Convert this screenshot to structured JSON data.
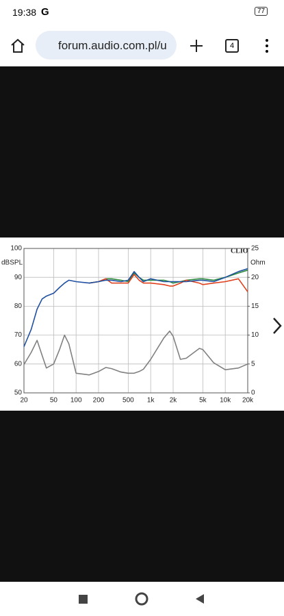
{
  "status_bar": {
    "time": "19:38",
    "g": "G",
    "battery": "77"
  },
  "browser": {
    "url": "forum.audio.com.pl/u",
    "tabs": "4"
  },
  "chart_data": {
    "type": "line",
    "brand": "CLIO",
    "y_label": "dBSPL",
    "y2_label": "Ohm",
    "x": [
      20,
      25,
      30,
      35,
      40,
      50,
      60,
      70,
      80,
      100,
      150,
      200,
      250,
      300,
      400,
      500,
      600,
      700,
      800,
      1000,
      1500,
      1800,
      2000,
      2500,
      3000,
      4500,
      5000,
      7000,
      10000,
      15000,
      20000
    ],
    "xlim": [
      20,
      20000
    ],
    "log_x": true,
    "xticks": [
      20,
      50,
      100,
      200,
      500,
      {
        "value": 1000,
        "label": "1k"
      },
      {
        "value": 2000,
        "label": "2k"
      },
      {
        "value": 5000,
        "label": "5k"
      },
      {
        "value": 10000,
        "label": "10k"
      },
      {
        "value": 20000,
        "label": "20k"
      }
    ],
    "ylim": [
      50,
      100
    ],
    "yticks": [
      50,
      60,
      70,
      80,
      90,
      100
    ],
    "y2lim": [
      0,
      25
    ],
    "y2ticks": [
      0,
      5,
      10,
      15,
      20,
      25
    ],
    "grid": true,
    "series": [
      {
        "color": "#2e8b3c",
        "values": [
          null,
          null,
          null,
          null,
          null,
          null,
          null,
          null,
          null,
          null,
          88,
          88.5,
          89.5,
          89.5,
          89,
          88.5,
          91.5,
          90,
          89,
          89,
          89,
          88.5,
          88,
          88.5,
          89,
          89.5,
          89.5,
          89,
          90,
          91.5,
          92.5
        ]
      },
      {
        "color": "#e0401c",
        "values": [
          null,
          null,
          null,
          null,
          null,
          null,
          null,
          null,
          null,
          null,
          88,
          88.5,
          89.5,
          88,
          88,
          88,
          91,
          89,
          88,
          88,
          87.5,
          87,
          87,
          88,
          89,
          88,
          87.5,
          88,
          88.5,
          89.5,
          85
        ]
      },
      {
        "color": "#1f4fa0",
        "values": [
          66,
          72,
          79,
          82.5,
          83.5,
          84.5,
          86.5,
          88,
          89,
          88.5,
          88,
          88.5,
          89,
          89,
          88.5,
          89,
          92,
          90,
          88.5,
          89.5,
          88.5,
          88.5,
          88.5,
          88.5,
          88.5,
          89,
          89,
          88.5,
          90,
          92,
          93
        ]
      },
      {
        "color": "#808080",
        "axis": "y2",
        "values": [
          4.9,
          7,
          9.1,
          6.5,
          4.3,
          5,
          7.5,
          10,
          8.5,
          3.4,
          3.1,
          3.7,
          4.4,
          4.2,
          3.6,
          3.4,
          3.4,
          3.7,
          4.1,
          5.8,
          9.5,
          10.7,
          9.8,
          5.8,
          6,
          7.7,
          7.5,
          5.2,
          4,
          4.3,
          5
        ]
      }
    ]
  }
}
